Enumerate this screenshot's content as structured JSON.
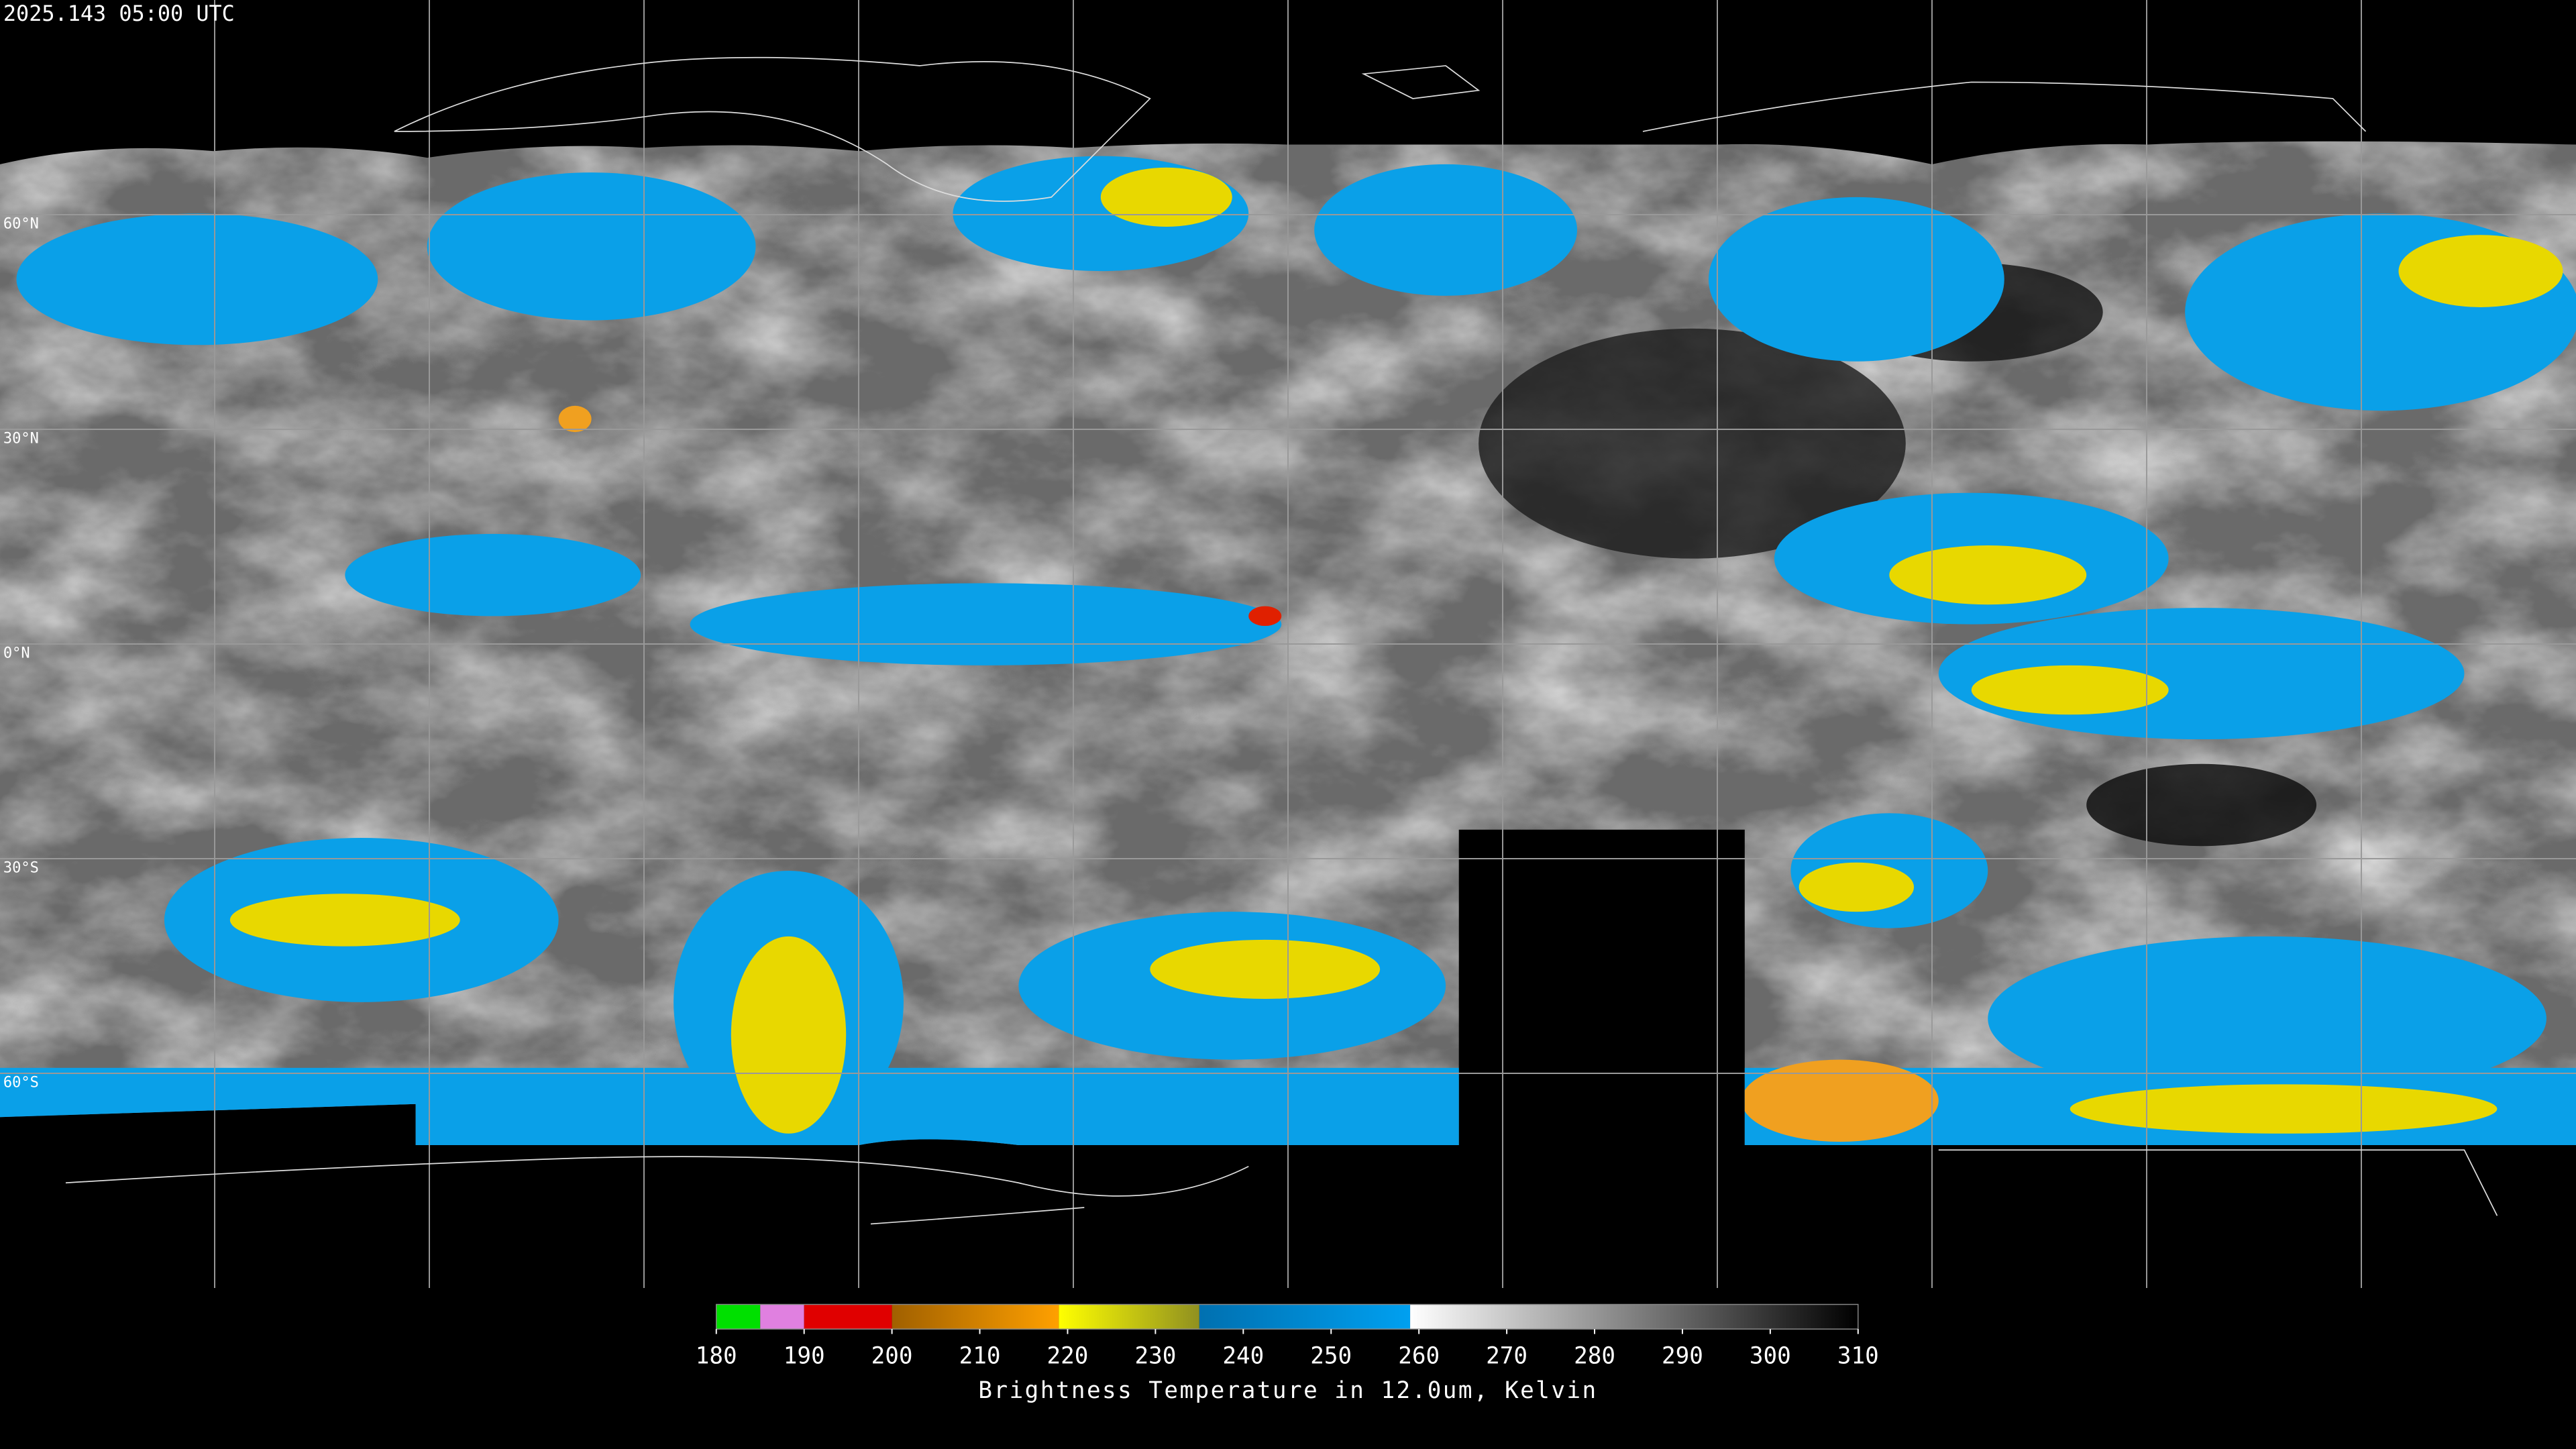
{
  "header": {
    "timestamp": "2025.143 05:00 UTC"
  },
  "map": {
    "lat_labels": [
      "60°N",
      "30°N",
      "0°N",
      "30°S",
      "60°S"
    ]
  },
  "colorbar": {
    "range": [
      180,
      310
    ],
    "ticks": [
      180,
      190,
      200,
      210,
      220,
      230,
      240,
      250,
      260,
      270,
      280,
      290,
      300,
      310
    ],
    "label": "Brightness Temperature in 12.0um, Kelvin",
    "segments": [
      {
        "from": 180,
        "to": 185,
        "colors": [
          "#00e000",
          "#00e000"
        ]
      },
      {
        "from": 185,
        "to": 190,
        "colors": [
          "#e080e0",
          "#e080e0"
        ]
      },
      {
        "from": 190,
        "to": 200,
        "colors": [
          "#e00000",
          "#e00000"
        ]
      },
      {
        "from": 200,
        "to": 219,
        "colors": [
          "#a06000",
          "#ffa000"
        ]
      },
      {
        "from": 219,
        "to": 235,
        "colors": [
          "#ffff00",
          "#909020"
        ]
      },
      {
        "from": 235,
        "to": 259,
        "colors": [
          "#0070b0",
          "#00a0f0"
        ]
      },
      {
        "from": 259,
        "to": 310,
        "colors": [
          "#ffffff",
          "#000000"
        ]
      }
    ]
  }
}
